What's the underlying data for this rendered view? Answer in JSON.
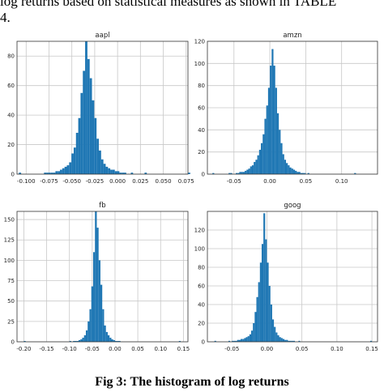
{
  "document": {
    "line1": "log returns based on statistical measures as shown in TABLE",
    "line2": "4.",
    "caption": "Fig 3: The histogram of log returns"
  },
  "colors": {
    "bar": "#1f77b4",
    "grid": "#c8c8c8",
    "axis": "#333333"
  },
  "chart_data": [
    {
      "type": "bar",
      "title": "aapl",
      "xlim": [
        -0.11,
        0.077
      ],
      "ylim": [
        0,
        90
      ],
      "xticks": [
        -0.1,
        -0.075,
        -0.05,
        -0.025,
        0.0,
        0.025,
        0.05,
        0.075
      ],
      "xtick_labels": [
        "-0.100",
        "-0.075",
        "-0.050",
        "-0.025",
        "0.000",
        "0.025",
        "0.050",
        "0.075"
      ],
      "yticks": [
        0,
        20,
        40,
        60,
        80
      ],
      "ytick_labels": [
        "0",
        "20",
        "40",
        "60",
        "80"
      ],
      "bin_start": -0.108,
      "bin_width": 0.0025,
      "counts": [
        1,
        0,
        0,
        0,
        0,
        0,
        0,
        0,
        0,
        0,
        0,
        1,
        1,
        1,
        1,
        1,
        2,
        2,
        3,
        4,
        5,
        6,
        8,
        14,
        18,
        28,
        38,
        55,
        70,
        90,
        78,
        65,
        50,
        38,
        24,
        16,
        10,
        7,
        5,
        4,
        3,
        3,
        2,
        2,
        1,
        1,
        1,
        0,
        0,
        1,
        0,
        0,
        0,
        0,
        0,
        1,
        0,
        0,
        0,
        0,
        0,
        0,
        0,
        0,
        0,
        0,
        0,
        0,
        0,
        0,
        0,
        0,
        0,
        0,
        1
      ]
    },
    {
      "type": "bar",
      "title": "amzn",
      "xlim": [
        -0.087,
        0.15
      ],
      "ylim": [
        0,
        120
      ],
      "xticks": [
        -0.05,
        0.0,
        0.05,
        0.1
      ],
      "xtick_labels": [
        "-0.05",
        "0.00",
        "0.05",
        "0.10"
      ],
      "yticks": [
        0,
        20,
        40,
        60,
        80,
        100,
        120
      ],
      "ytick_labels": [
        "0",
        "20",
        "40",
        "60",
        "80",
        "100",
        "120"
      ],
      "bin_start": -0.08,
      "bin_width": 0.0025,
      "counts": [
        1,
        0,
        0,
        0,
        0,
        0,
        0,
        0,
        0,
        1,
        1,
        0,
        0,
        1,
        1,
        2,
        2,
        2,
        3,
        4,
        5,
        7,
        8,
        11,
        13,
        17,
        22,
        28,
        36,
        50,
        62,
        78,
        98,
        113,
        98,
        78,
        55,
        40,
        28,
        18,
        13,
        10,
        8,
        6,
        5,
        4,
        3,
        2,
        2,
        1,
        1,
        1,
        0,
        1,
        0,
        0,
        0,
        0,
        0,
        0,
        0,
        0,
        0,
        0,
        0,
        0,
        0,
        0,
        0,
        0,
        0,
        0,
        0,
        0,
        0,
        0,
        0,
        0,
        0,
        1
      ]
    },
    {
      "type": "bar",
      "title": "fb",
      "xlim": [
        -0.215,
        0.16
      ],
      "ylim": [
        0,
        160
      ],
      "xticks": [
        -0.2,
        -0.15,
        -0.1,
        -0.05,
        0.0,
        0.05,
        0.1,
        0.15
      ],
      "xtick_labels": [
        "-0.20",
        "-0.15",
        "-0.10",
        "-0.05",
        "0.00",
        "0.05",
        "0.10",
        "0.15"
      ],
      "yticks": [
        0,
        25,
        50,
        75,
        100,
        125,
        150
      ],
      "ytick_labels": [
        "0",
        "25",
        "50",
        "75",
        "100",
        "125",
        "150"
      ],
      "bin_start": -0.2,
      "bin_width": 0.004,
      "counts": [
        1,
        0,
        0,
        0,
        0,
        0,
        0,
        0,
        0,
        0,
        0,
        0,
        0,
        0,
        0,
        0,
        0,
        0,
        0,
        0,
        0,
        0,
        0,
        0,
        0,
        1,
        0,
        1,
        1,
        1,
        2,
        3,
        5,
        8,
        14,
        25,
        40,
        68,
        110,
        160,
        140,
        100,
        70,
        40,
        20,
        12,
        8,
        5,
        3,
        2,
        1,
        1,
        1,
        0,
        0,
        0,
        0,
        0,
        0,
        0,
        0,
        0,
        0,
        0,
        0,
        0,
        0,
        0,
        0,
        0,
        0,
        0,
        0,
        0,
        0,
        0,
        0,
        0,
        0,
        0,
        0,
        0,
        0,
        0,
        0,
        1
      ]
    },
    {
      "type": "bar",
      "title": "goog",
      "xlim": [
        -0.085,
        0.158
      ],
      "ylim": [
        0,
        140
      ],
      "xticks": [
        -0.05,
        0.0,
        0.05,
        0.1,
        0.15
      ],
      "xtick_labels": [
        "-0.05",
        "0.00",
        "0.05",
        "0.10",
        "0.15"
      ],
      "yticks": [
        0,
        20,
        40,
        60,
        80,
        100,
        120
      ],
      "ytick_labels": [
        "0",
        "20",
        "40",
        "60",
        "80",
        "100",
        "120"
      ],
      "bin_start": -0.075,
      "bin_width": 0.0025,
      "counts": [
        1,
        0,
        0,
        0,
        0,
        0,
        0,
        0,
        1,
        0,
        1,
        1,
        1,
        2,
        2,
        3,
        3,
        4,
        5,
        6,
        8,
        12,
        20,
        32,
        48,
        64,
        85,
        105,
        138,
        110,
        85,
        60,
        40,
        24,
        16,
        10,
        7,
        5,
        4,
        3,
        2,
        2,
        1,
        1,
        1,
        1,
        0,
        0,
        1,
        0,
        0,
        0,
        0,
        0,
        0,
        0,
        0,
        0,
        0,
        0,
        0,
        0,
        0,
        0,
        0,
        0,
        0,
        0,
        0,
        0,
        0,
        0,
        0,
        0,
        0,
        0,
        0,
        0,
        0,
        0,
        0,
        0,
        0,
        0,
        0,
        0,
        0,
        0,
        0,
        1
      ]
    }
  ]
}
